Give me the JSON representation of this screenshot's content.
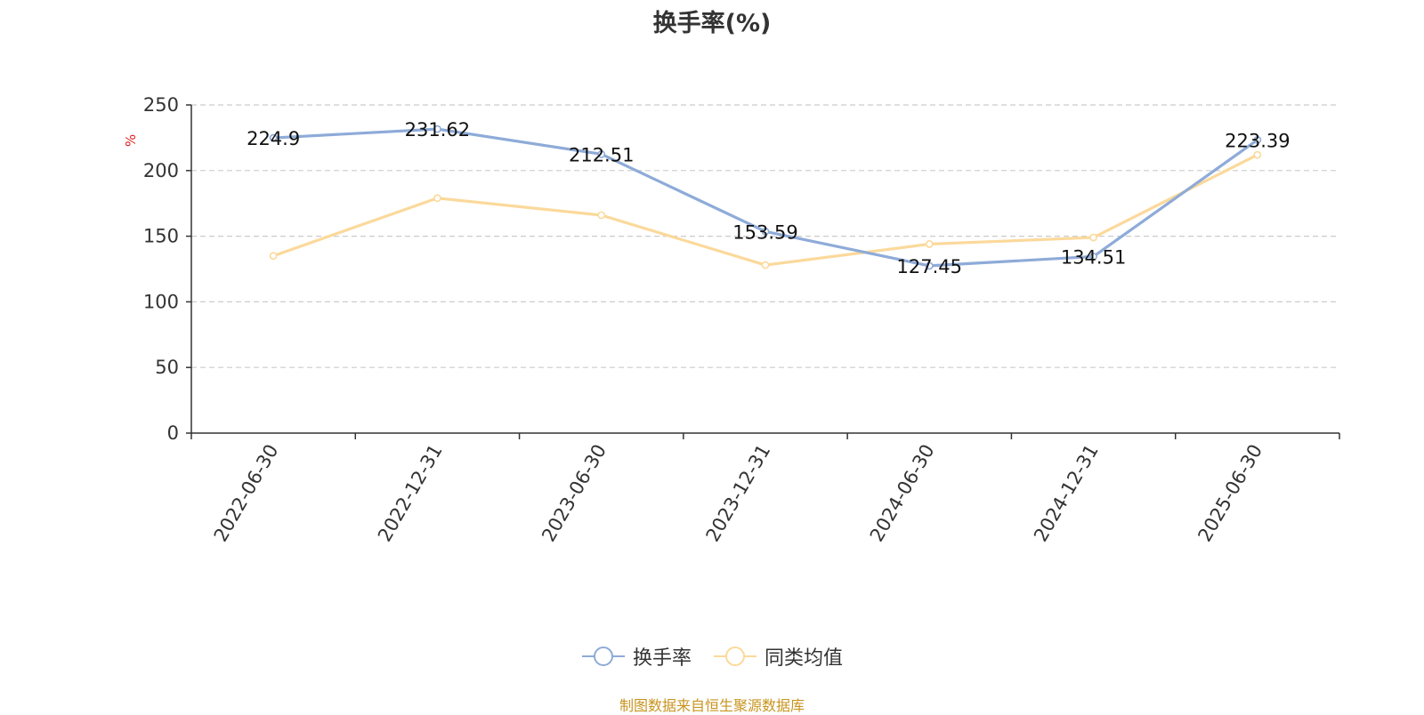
{
  "chart_data": {
    "type": "line",
    "title": "换手率(%)",
    "ylabel": "%",
    "xlabel": "",
    "categories": [
      "2022-06-30",
      "2022-12-31",
      "2023-06-30",
      "2023-12-31",
      "2024-06-30",
      "2024-12-31",
      "2025-06-30"
    ],
    "ylim": [
      0,
      250
    ],
    "yticks": [
      "0",
      "50",
      "100",
      "150",
      "200",
      "250"
    ],
    "grid": true,
    "legend_position": "bottom",
    "series": [
      {
        "name": "换手率",
        "color": "#8eabd8",
        "values": [
          224.9,
          231.62,
          212.51,
          153.59,
          127.45,
          134.51,
          223.39
        ],
        "labels": [
          "224.9",
          "231.62",
          "212.51",
          "153.59",
          "127.45",
          "134.51",
          "223.39"
        ],
        "show_labels": true
      },
      {
        "name": "同类均值",
        "color": "#fbd99b",
        "values": [
          135,
          179,
          166,
          128,
          144,
          149,
          212
        ],
        "show_labels": false
      }
    ]
  },
  "source": {
    "text": "制图数据来自恒生聚源数据库",
    "color": "#c8941f"
  },
  "colors": {
    "axis": "#333333",
    "grid": "#cccccc",
    "ylabel": "#e02020"
  }
}
